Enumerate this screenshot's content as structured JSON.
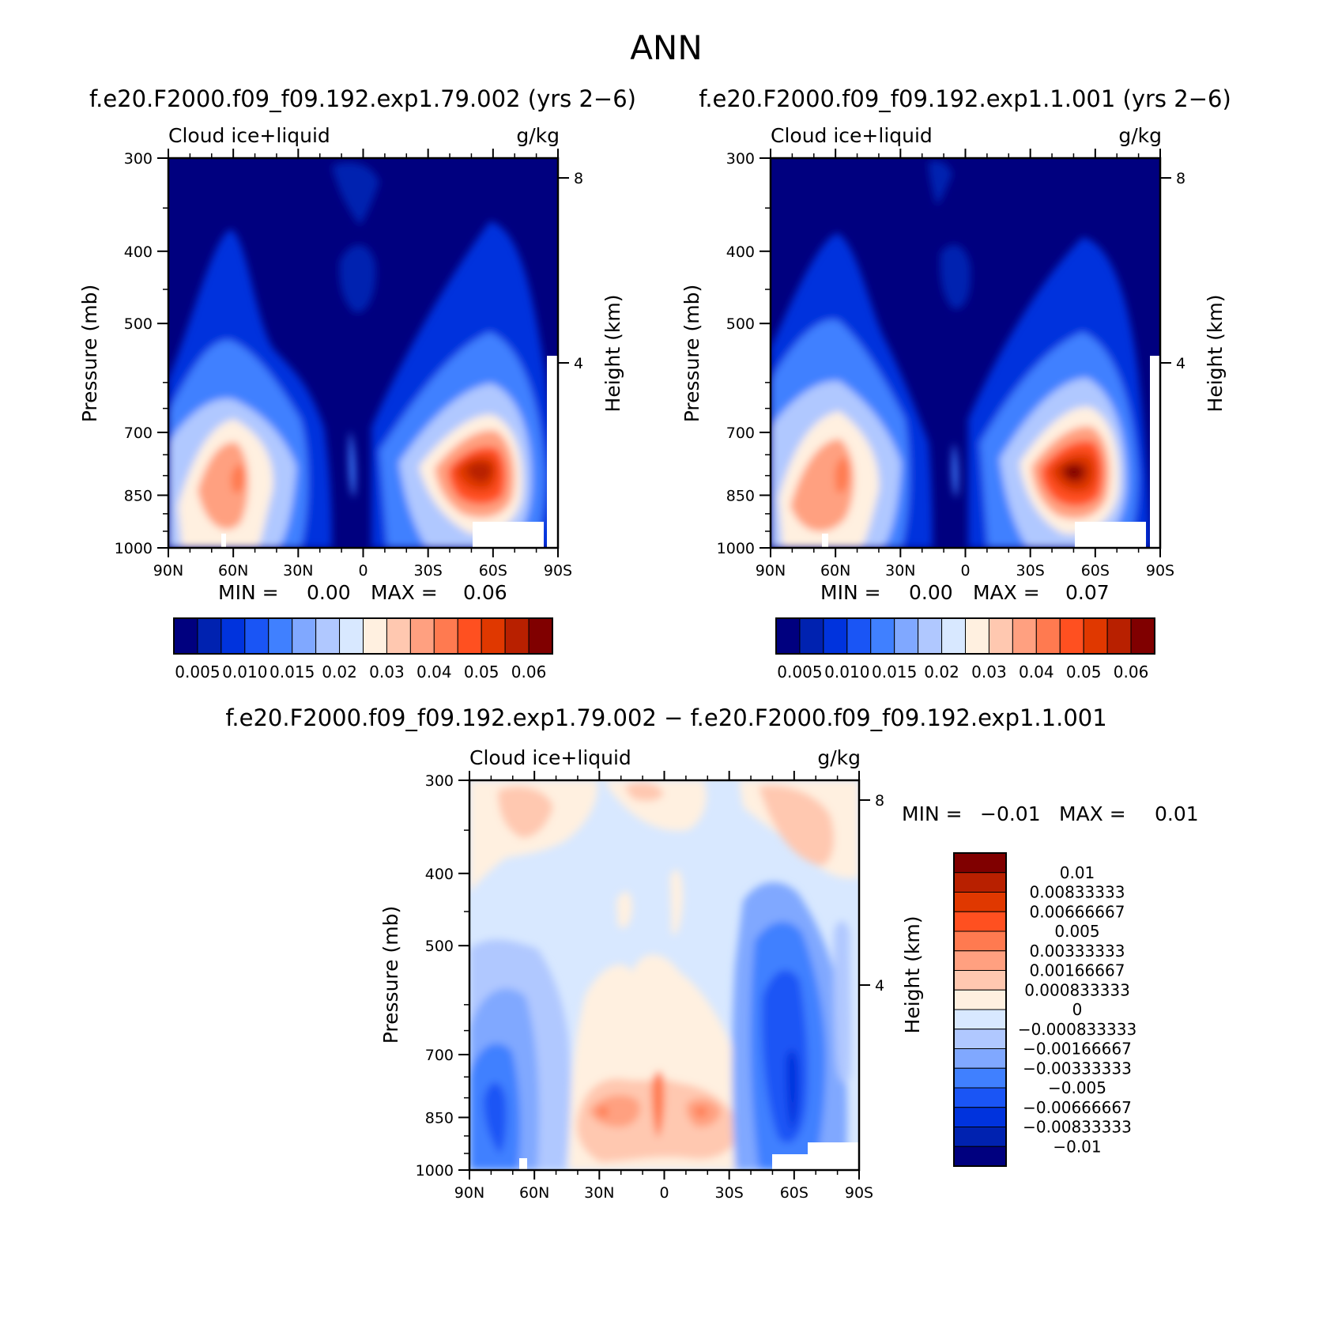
{
  "figure": {
    "title": "ANN",
    "palette": [
      "#00007f",
      "#0022b0",
      "#0033dd",
      "#1a55f5",
      "#4080ff",
      "#80a8ff",
      "#b0c8ff",
      "#d8e8ff",
      "#fff0e0",
      "#ffc8b0",
      "#ffa080",
      "#ff7a50",
      "#ff5020",
      "#e03800",
      "#b82000",
      "#800000"
    ]
  },
  "panels": [
    {
      "title": "f.e20.F2000.f09_f09.192.exp1.79.002 (yrs 2−6)",
      "left_label": "Cloud ice+liquid",
      "right_label": "g/kg",
      "ylabel": "Pressure (mb)",
      "y2label": "Height (km)",
      "min_label": "MIN =",
      "min_value": "0.00",
      "max_label": "MAX =",
      "max_value": "0.06",
      "colorbar_labels": [
        "0.005",
        "0.010",
        "0.015",
        "0.02",
        "0.03",
        "0.04",
        "0.05",
        "0.06"
      ]
    },
    {
      "title": "f.e20.F2000.f09_f09.192.exp1.1.001 (yrs 2−6)",
      "left_label": "Cloud ice+liquid",
      "right_label": "g/kg",
      "ylabel": "Pressure (mb)",
      "y2label": "Height (km)",
      "min_label": "MIN =",
      "min_value": "0.00",
      "max_label": "MAX =",
      "max_value": "0.07",
      "colorbar_labels": [
        "0.005",
        "0.010",
        "0.015",
        "0.02",
        "0.03",
        "0.04",
        "0.05",
        "0.06"
      ]
    },
    {
      "title": "f.e20.F2000.f09_f09.192.exp1.79.002 − f.e20.F2000.f09_f09.192.exp1.1.001",
      "left_label": "Cloud ice+liquid",
      "right_label": "g/kg",
      "ylabel": "Pressure (mb)",
      "y2label": "Height (km)",
      "min_label": "MIN =",
      "min_value": "−0.01",
      "max_label": "MAX =",
      "max_value": "0.01",
      "colorbar_labels": [
        "0.01",
        "0.00833333",
        "0.00666667",
        "0.005",
        "0.00333333",
        "0.00166667",
        "0.000833333",
        "0",
        "−0.000833333",
        "−0.00166667",
        "−0.00333333",
        "−0.005",
        "−0.00666667",
        "−0.00833333",
        "−0.01"
      ]
    }
  ],
  "chart_data": [
    {
      "type": "heatmap",
      "title": "f.e20.F2000.f09_f09.192.exp1.79.002 (yrs 2−6)",
      "variable": "Cloud ice+liquid",
      "units": "g/kg",
      "xlabel": "",
      "ylabel": "Pressure (mb)",
      "y2label": "Height (km)",
      "x_ticks": [
        "90N",
        "60N",
        "30N",
        "0",
        "30S",
        "60S",
        "90S"
      ],
      "x_values": [
        90,
        60,
        30,
        0,
        -30,
        -60,
        -90
      ],
      "y_ticks": [
        300,
        400,
        500,
        700,
        850,
        1000
      ],
      "y2_ticks": [
        8,
        4
      ],
      "ylim": [
        1000,
        300
      ],
      "contour_levels": [
        0.005,
        0.01,
        0.015,
        0.02,
        0.03,
        0.04,
        0.05,
        0.06
      ],
      "features": [
        {
          "lat": 58,
          "p": 850,
          "value": 0.035
        },
        {
          "lat": -52,
          "p": 850,
          "value": 0.06
        },
        {
          "lat": 3,
          "p": 850,
          "value": 0.015
        },
        {
          "lat": 0,
          "p": 500,
          "value": 0.01
        }
      ],
      "min": 0.0,
      "max": 0.06
    },
    {
      "type": "heatmap",
      "title": "f.e20.F2000.f09_f09.192.exp1.1.001 (yrs 2−6)",
      "variable": "Cloud ice+liquid",
      "units": "g/kg",
      "xlabel": "",
      "ylabel": "Pressure (mb)",
      "y2label": "Height (km)",
      "x_ticks": [
        "90N",
        "60N",
        "30N",
        "0",
        "30S",
        "60S",
        "90S"
      ],
      "x_values": [
        90,
        60,
        30,
        0,
        -30,
        -60,
        -90
      ],
      "y_ticks": [
        300,
        400,
        500,
        700,
        850,
        1000
      ],
      "y2_ticks": [
        8,
        4
      ],
      "ylim": [
        1000,
        300
      ],
      "contour_levels": [
        0.005,
        0.01,
        0.015,
        0.02,
        0.03,
        0.04,
        0.05,
        0.06
      ],
      "features": [
        {
          "lat": 58,
          "p": 850,
          "value": 0.04
        },
        {
          "lat": -52,
          "p": 850,
          "value": 0.07
        },
        {
          "lat": 3,
          "p": 850,
          "value": 0.015
        },
        {
          "lat": 0,
          "p": 500,
          "value": 0.01
        }
      ],
      "min": 0.0,
      "max": 0.07
    },
    {
      "type": "heatmap",
      "title": "f.e20.F2000.f09_f09.192.exp1.79.002 − f.e20.F2000.f09_f09.192.exp1.1.001",
      "variable": "Cloud ice+liquid",
      "units": "g/kg",
      "xlabel": "",
      "ylabel": "Pressure (mb)",
      "y2label": "Height (km)",
      "x_ticks": [
        "90N",
        "60N",
        "30N",
        "0",
        "30S",
        "60S",
        "90S"
      ],
      "x_values": [
        90,
        60,
        30,
        0,
        -30,
        -60,
        -90
      ],
      "y_ticks": [
        300,
        400,
        500,
        700,
        850,
        1000
      ],
      "y2_ticks": [
        8,
        4
      ],
      "ylim": [
        1000,
        300
      ],
      "contour_levels": [
        -0.01,
        -0.00833333,
        -0.00666667,
        -0.005,
        -0.00333333,
        -0.00166667,
        -0.000833333,
        0,
        0.000833333,
        0.00166667,
        0.00333333,
        0.005,
        0.00666667,
        0.00833333,
        0.01
      ],
      "features": [
        {
          "lat": 70,
          "p": 850,
          "value": -0.005
        },
        {
          "lat": -60,
          "p": 800,
          "value": -0.007
        },
        {
          "lat": 20,
          "p": 850,
          "value": 0.004
        },
        {
          "lat": -10,
          "p": 850,
          "value": 0.004
        },
        {
          "lat": 10,
          "p": 850,
          "value": 0.003
        }
      ],
      "min": -0.01,
      "max": 0.01
    }
  ]
}
